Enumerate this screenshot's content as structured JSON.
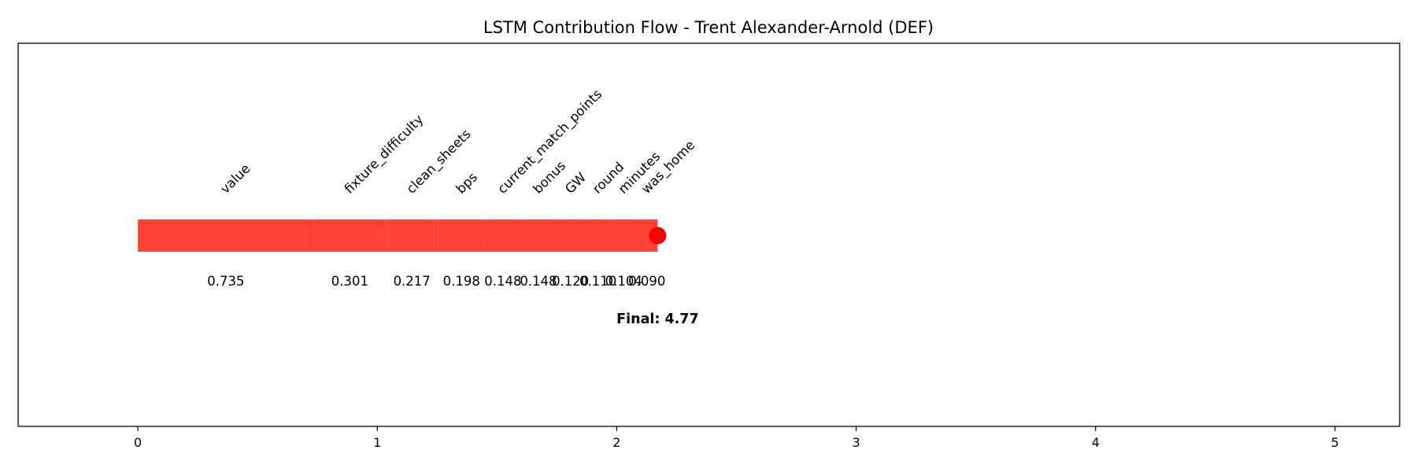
{
  "chart_data": {
    "type": "bar",
    "title": "LSTM Contribution Flow - Trent Alexander-Arnold (DEF)",
    "xlabel": "",
    "ylabel": "",
    "xlim": [
      -0.5,
      5.27
    ],
    "xticks": [
      0,
      1,
      2,
      3,
      4,
      5
    ],
    "grid": false,
    "bar_color": "#ff4136",
    "endpoint_color": "#ff0000",
    "features": [
      {
        "name": "value",
        "value": 0.735,
        "label": "0.735"
      },
      {
        "name": "fixture_difficulty",
        "value": 0.301,
        "label": "0.301"
      },
      {
        "name": "clean_sheets",
        "value": 0.217,
        "label": "0.217"
      },
      {
        "name": "bps",
        "value": 0.198,
        "label": "0.198"
      },
      {
        "name": "current_match_points",
        "value": 0.148,
        "label": "0.148"
      },
      {
        "name": "bonus",
        "value": 0.148,
        "label": "0.148"
      },
      {
        "name": "GW",
        "value": 0.12,
        "label": "0.120"
      },
      {
        "name": "round",
        "value": 0.11,
        "label": "0.110"
      },
      {
        "name": "minutes",
        "value": 0.104,
        "label": "0.104"
      },
      {
        "name": "was_home",
        "value": 0.09,
        "label": "0.090"
      }
    ],
    "final_label": "Final: 4.77"
  }
}
